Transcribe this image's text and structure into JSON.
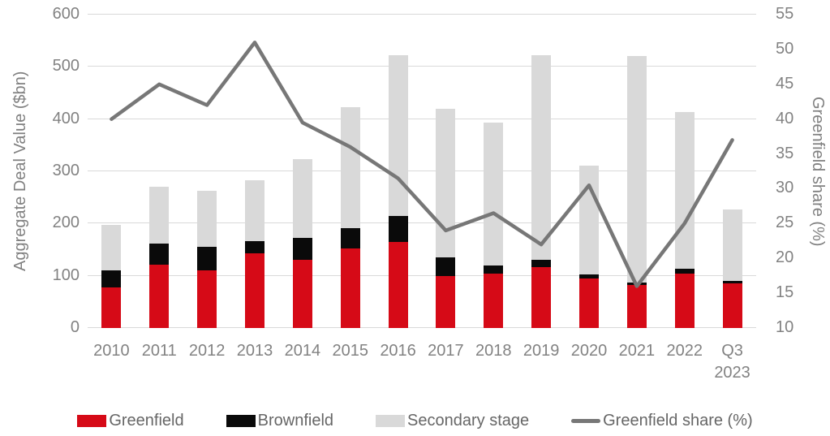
{
  "chart_data": {
    "type": "bar",
    "subtype": "stacked-bar-with-line-overlay",
    "categories": [
      "2010",
      "2011",
      "2012",
      "2013",
      "2014",
      "2015",
      "2016",
      "2017",
      "2018",
      "2019",
      "2020",
      "2021",
      "2022",
      "Q3 2023"
    ],
    "series": [
      {
        "name": "Greenfield",
        "type": "bar",
        "axis": "left",
        "color": "#d60a17",
        "values": [
          78,
          122,
          110,
          143,
          130,
          152,
          165,
          100,
          104,
          117,
          95,
          82,
          104,
          86
        ]
      },
      {
        "name": "Brownfield",
        "type": "bar",
        "axis": "left",
        "color": "#0a0a0a",
        "values": [
          32,
          39,
          46,
          23,
          42,
          40,
          49,
          35,
          15,
          13,
          8,
          5,
          9,
          4
        ]
      },
      {
        "name": "Secondary stage",
        "type": "bar",
        "axis": "left",
        "color": "#d9d9d9",
        "values": [
          87,
          109,
          106,
          117,
          152,
          231,
          309,
          284,
          275,
          392,
          208,
          434,
          300,
          137
        ]
      },
      {
        "name": "Greenfield share (%)",
        "type": "line",
        "axis": "right",
        "color": "#777777",
        "values": [
          40,
          45,
          42,
          51,
          39.5,
          36,
          31.5,
          24,
          26.5,
          22,
          30.5,
          16,
          25,
          37
        ]
      }
    ],
    "totals_bar": [
      197,
      270,
      262,
      283,
      324,
      423,
      523,
      419,
      394,
      522,
      311,
      521,
      413,
      227
    ],
    "left_axis": {
      "title": "Aggregate Deal Value ($bn)",
      "min": 0,
      "max": 600,
      "ticks": [
        "0",
        "100",
        "200",
        "300",
        "400",
        "500",
        "600"
      ]
    },
    "right_axis": {
      "title": "Greenfield share (%)",
      "min": 10,
      "max": 55,
      "ticks": [
        "10",
        "15",
        "20",
        "25",
        "30",
        "35",
        "40",
        "45",
        "50",
        "55"
      ]
    },
    "grid": {
      "show": true,
      "color": "#d9d9d9"
    },
    "legend_position": "bottom"
  },
  "legend": {
    "items": [
      {
        "label": "Greenfield",
        "color": "#d60a17",
        "kind": "bar"
      },
      {
        "label": "Brownfield",
        "color": "#0a0a0a",
        "kind": "bar"
      },
      {
        "label": "Secondary stage",
        "color": "#d9d9d9",
        "kind": "bar"
      },
      {
        "label": "Greenfield share (%)",
        "color": "#777777",
        "kind": "line"
      }
    ]
  }
}
